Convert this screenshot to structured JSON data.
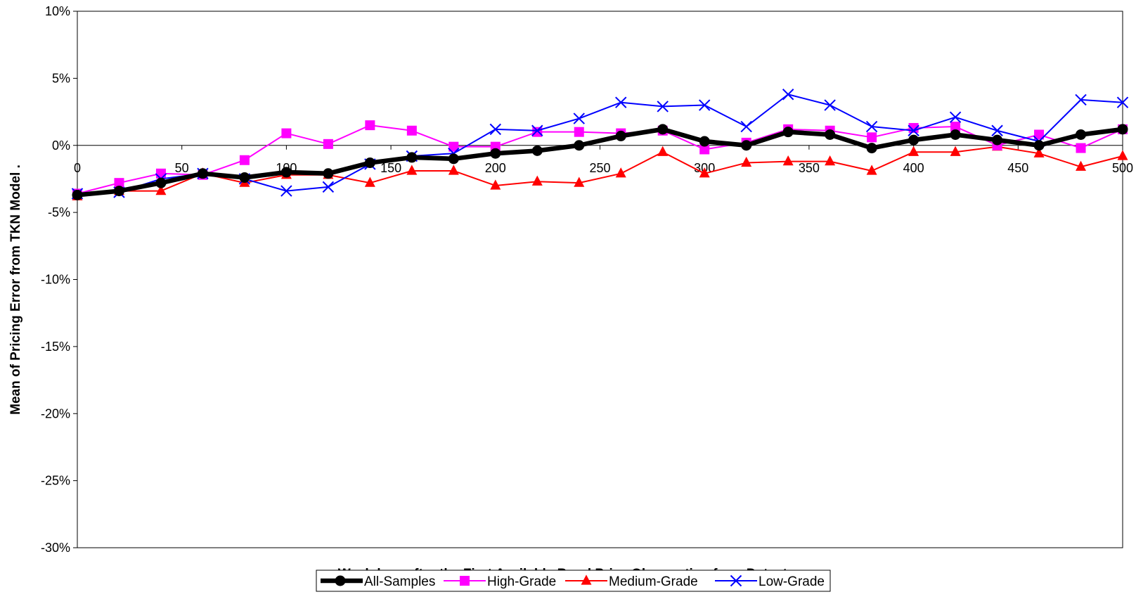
{
  "chart_data": {
    "type": "line",
    "title": "",
    "xlabel": "Weekdays after the First Available Bond Price Observation from Datastream",
    "ylabel": "Mean of Pricing Error from TKN Model   .",
    "xlim": [
      0,
      500
    ],
    "ylim": [
      -30,
      10
    ],
    "x_ticks": [
      0,
      50,
      100,
      150,
      200,
      250,
      300,
      350,
      400,
      450,
      500
    ],
    "y_ticks": [
      10,
      5,
      0,
      -5,
      -10,
      -15,
      -20,
      -25,
      -30
    ],
    "y_tick_labels": [
      "10%",
      "5%",
      "0%",
      "-5%",
      "-10%",
      "-15%",
      "-20%",
      "-25%",
      "-30%"
    ],
    "grid": false,
    "legend_position": "bottom",
    "x": [
      0,
      20,
      40,
      60,
      80,
      100,
      120,
      140,
      160,
      180,
      200,
      220,
      240,
      260,
      280,
      300,
      320,
      340,
      360,
      380,
      400,
      420,
      440,
      460,
      480,
      500
    ],
    "series": [
      {
        "name": "All-Samples",
        "color": "#000000",
        "marker": "circle",
        "values": [
          -3.7,
          -3.4,
          -2.8,
          -2.1,
          -2.4,
          -2.0,
          -2.1,
          -1.3,
          -0.9,
          -1.0,
          -0.6,
          -0.4,
          0.0,
          0.7,
          1.2,
          0.3,
          0.0,
          1.0,
          0.8,
          -0.2,
          0.4,
          0.8,
          0.4,
          0.0,
          0.8,
          1.2
        ]
      },
      {
        "name": "High-Grade",
        "color": "#FF00FF",
        "marker": "square",
        "values": [
          -3.6,
          -2.8,
          -2.1,
          -2.2,
          -1.1,
          0.9,
          0.1,
          1.5,
          1.1,
          -0.1,
          -0.1,
          1.0,
          1.0,
          0.9,
          1.1,
          -0.3,
          0.2,
          1.2,
          1.1,
          0.6,
          1.3,
          1.4,
          0.0,
          0.8,
          -0.2,
          1.2
        ]
      },
      {
        "name": "Medium-Grade",
        "color": "#FF0000",
        "marker": "triangle",
        "values": [
          -3.8,
          -3.4,
          -3.4,
          -2.1,
          -2.8,
          -2.2,
          -2.2,
          -2.8,
          -1.9,
          -1.9,
          -3.0,
          -2.7,
          -2.8,
          -2.1,
          -0.5,
          -2.1,
          -1.3,
          -1.2,
          -1.2,
          -1.9,
          -0.5,
          -0.5,
          -0.1,
          -0.6,
          -1.6,
          -0.8
        ]
      },
      {
        "name": "Low-Grade",
        "color": "#0000FF",
        "marker": "x",
        "values": [
          -3.6,
          -3.5,
          -2.5,
          -2.1,
          -2.5,
          -3.4,
          -3.1,
          -1.4,
          -0.8,
          -0.6,
          1.2,
          1.1,
          2.0,
          3.2,
          2.9,
          3.0,
          1.4,
          3.8,
          3.0,
          1.4,
          1.1,
          2.1,
          1.1,
          0.3,
          3.4,
          3.2
        ]
      }
    ]
  }
}
